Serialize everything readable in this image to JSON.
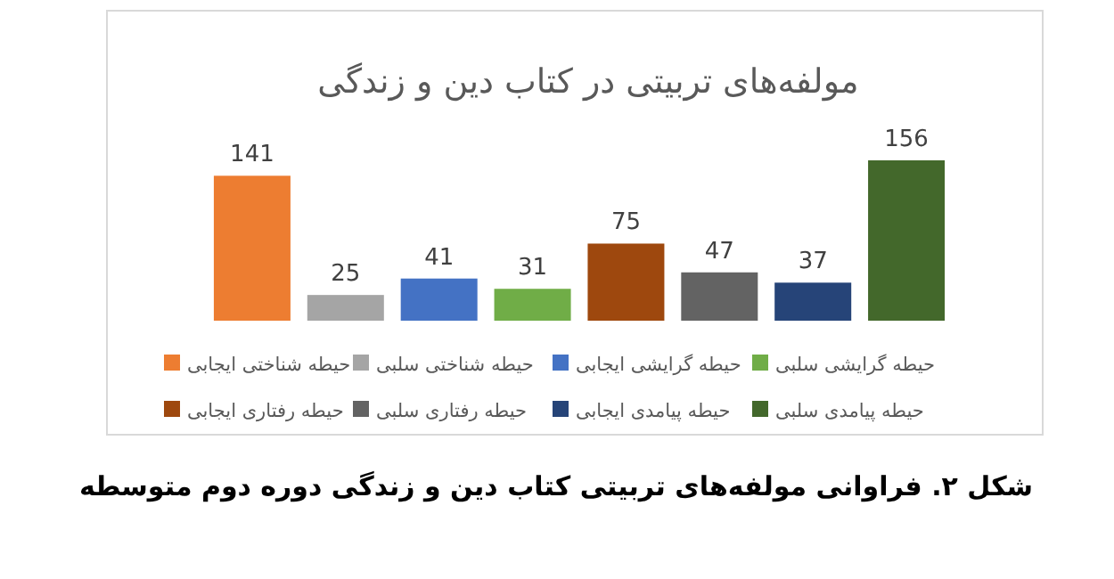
{
  "chart_data": {
    "type": "bar",
    "title": "مولفه‌های تربیتی در کتاب دین و زندگی",
    "categories": [
      null
    ],
    "series": [
      {
        "name": "حیطه شناختی ایجابی",
        "color": "#ed7d31",
        "values": [
          141
        ]
      },
      {
        "name": "حیطه شناختی سلبی",
        "color": "#a5a5a5",
        "values": [
          25
        ]
      },
      {
        "name": "حیطه گرایشی ایجابی",
        "color": "#4472c4",
        "values": [
          41
        ]
      },
      {
        "name": "حیطه گرایشی سلبی",
        "color": "#70ad47",
        "values": [
          31
        ]
      },
      {
        "name": "حیطه رفتاری ایجابی",
        "color": "#9e480e",
        "values": [
          75
        ]
      },
      {
        "name": "حیطه رفتاری سلبی",
        "color": "#636363",
        "values": [
          47
        ]
      },
      {
        "name": "حیطه پیامدی ایجابی",
        "color": "#264478",
        "values": [
          37
        ]
      },
      {
        "name": "حیطه پیامدی سلبی",
        "color": "#43682b",
        "values": [
          156
        ]
      }
    ],
    "data_labels": true,
    "grid": false,
    "legend": "bottom",
    "annotations": [
      "شکل ۲. فراوانی مولفه‌های تربیتی کتاب دین و زندگی دوره دوم متوسطه"
    ]
  }
}
